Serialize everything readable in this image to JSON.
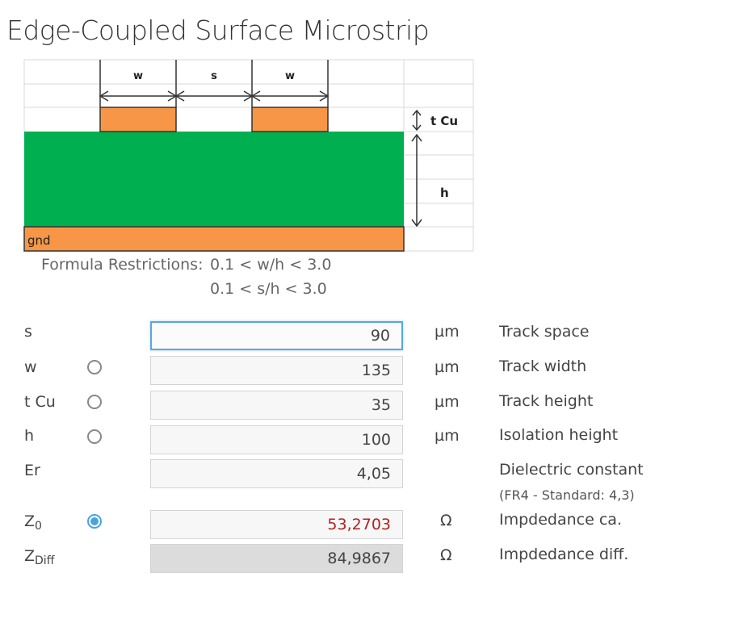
{
  "title": "Edge-Coupled Surface Microstrip",
  "diagram": {
    "labels": {
      "w1": "w",
      "s": "s",
      "w2": "w",
      "tcu": "t Cu",
      "h": "h",
      "gnd": "gnd"
    },
    "colors": {
      "copper": "#f79646",
      "substrate": "#00b050",
      "grid": "#d9d9d9"
    }
  },
  "restrictions": {
    "label": "Formula Restrictions:",
    "rule1": "0.1 < w/h < 3.0",
    "rule2": "0.1 < s/h < 3.0"
  },
  "rows": {
    "s": {
      "label": "s",
      "value": "90",
      "unit": "µm",
      "desc": "Track space"
    },
    "w": {
      "label": "w",
      "value": "135",
      "unit": "µm",
      "desc": "Track width"
    },
    "tcu": {
      "label": "t Cu",
      "value": "35",
      "unit": "µm",
      "desc": "Track height"
    },
    "h": {
      "label": "h",
      "value": "100",
      "unit": "µm",
      "desc": "Isolation height"
    },
    "er": {
      "label": "Er",
      "value": "4,05",
      "desc": "Dielectric constant",
      "note": "(FR4 - Standard: 4,3)"
    },
    "z0": {
      "label": "Z",
      "sub": "0",
      "value": "53,2703",
      "unit": "Ω",
      "desc": "Impdedance ca."
    },
    "zdiff": {
      "label": "Z",
      "sub": "Diff",
      "value": "84,9867",
      "unit": "Ω",
      "desc": "Impdedance diff."
    }
  },
  "colors": {
    "accent": "#4aa3df",
    "result": "#b22222"
  }
}
